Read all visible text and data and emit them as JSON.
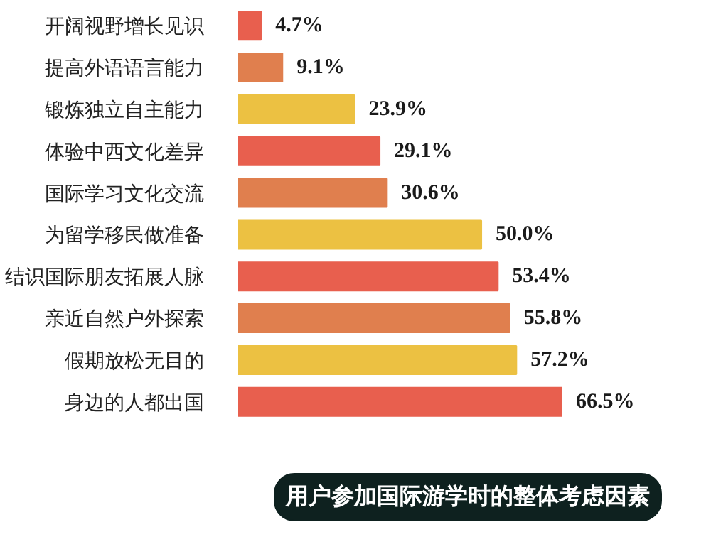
{
  "chart_data": {
    "type": "bar",
    "orientation": "horizontal",
    "title": "用户参加国际游学时的整体考虑因素",
    "categories": [
      "开阔视野增长见识",
      "提高外语语言能力",
      "锻炼独立自主能力",
      "体验中西文化差异",
      "国际学习文化交流",
      "为留学移民做准备",
      "结识国际朋友拓展人脉",
      "亲近自然户外探索",
      "假期放松无目的",
      "身边的人都出国"
    ],
    "values": [
      4.7,
      9.1,
      23.9,
      29.1,
      30.6,
      50.0,
      53.4,
      55.8,
      57.2,
      66.5
    ],
    "value_labels": [
      "4.7%",
      "9.1%",
      "23.9%",
      "29.1%",
      "30.6%",
      "50.0%",
      "53.4%",
      "55.8%",
      "57.2%",
      "66.5%"
    ],
    "colors": [
      "#e85f4e",
      "#e07f4e",
      "#ecc142",
      "#e85f4e",
      "#e07f4e",
      "#ecc142",
      "#e85f4e",
      "#e07f4e",
      "#ecc142",
      "#e85f4e"
    ],
    "grid": false,
    "tick_labels": "y"
  }
}
